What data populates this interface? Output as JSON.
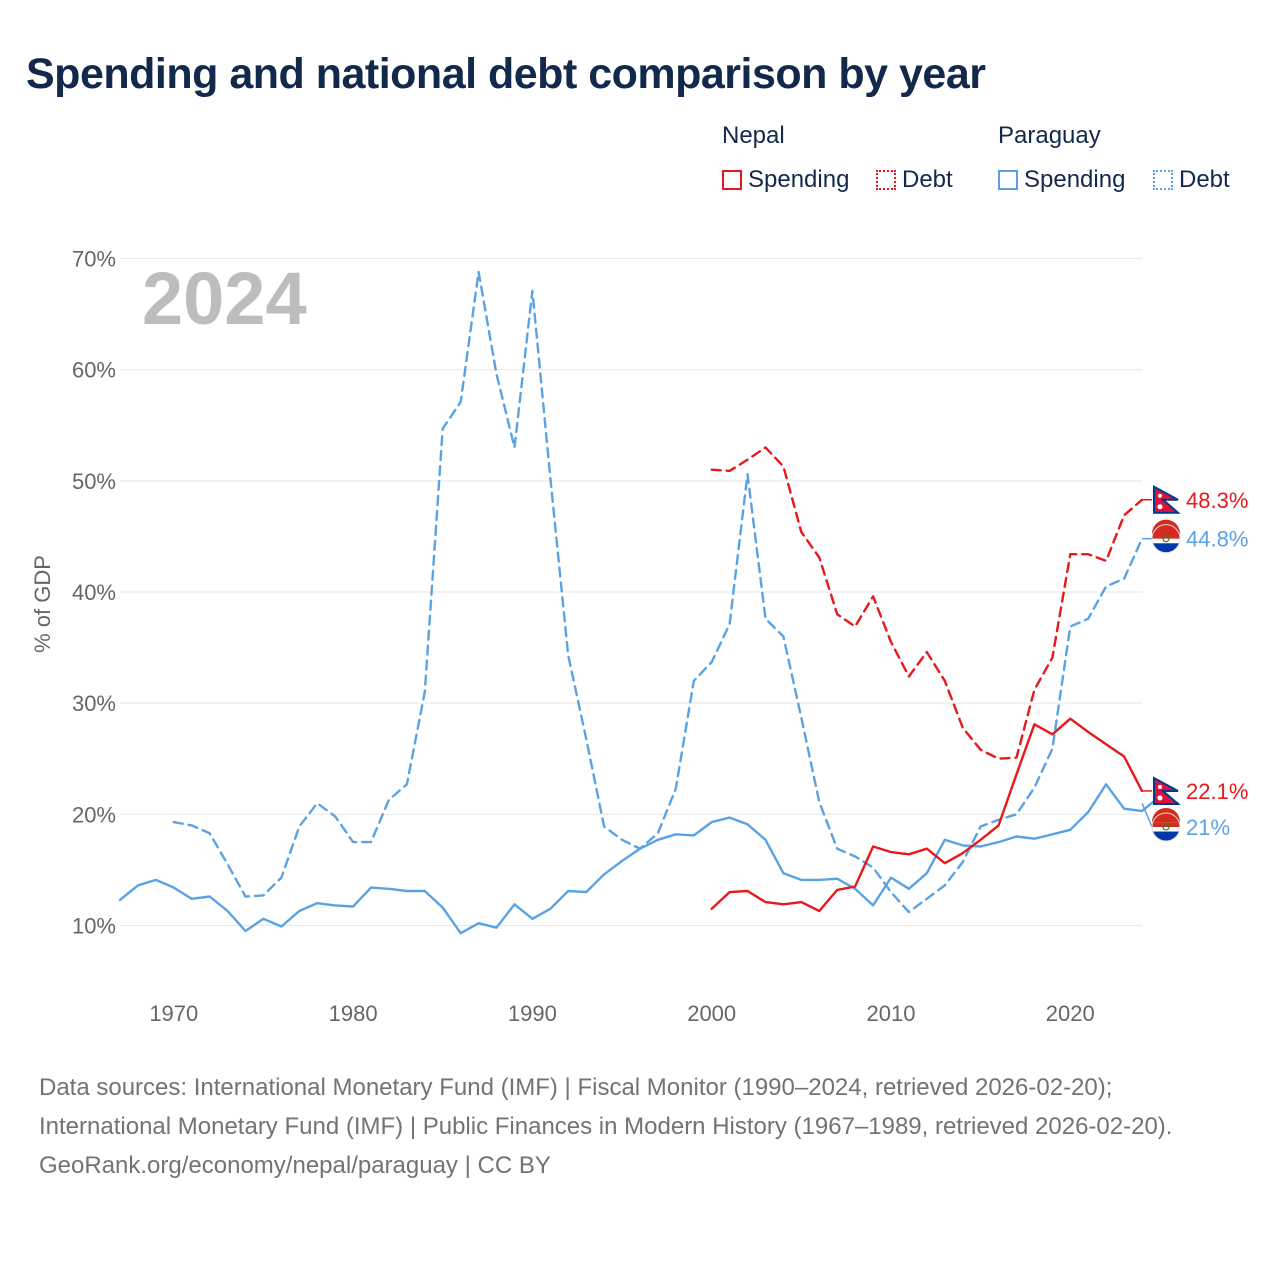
{
  "header": {
    "title": "Spending and national debt comparison by year"
  },
  "legend": {
    "groups": [
      {
        "country": "Nepal",
        "spending_label": "Spending",
        "debt_label": "Debt",
        "color": "#e8191c"
      },
      {
        "country": "Paraguay",
        "spending_label": "Spending",
        "debt_label": "Debt",
        "color": "#5aa3e2"
      }
    ]
  },
  "footer": {
    "sources": "Data sources: International Monetary Fund (IMF) | Fiscal Monitor (1990–2024, retrieved 2026-02-20); International Monetary Fund (IMF) | Public Finances in Modern History (1967–1989, retrieved 2026-02-20).",
    "credit": "GeoRank.org/economy/nepal/paraguay | CC BY"
  },
  "chart_data": {
    "type": "line",
    "year_label": "2024",
    "ylabel": "% of GDP",
    "xlim": [
      1967,
      2024
    ],
    "ylim": [
      5,
      75
    ],
    "x_ticks": [
      1970,
      1980,
      1990,
      2000,
      2010,
      2020
    ],
    "y_ticks": [
      10,
      20,
      30,
      40,
      50,
      60,
      70
    ],
    "y_tick_labels": [
      "10%",
      "20%",
      "30%",
      "40%",
      "50%",
      "60%",
      "70%"
    ],
    "grid": true,
    "series": [
      {
        "name": "Paraguay Debt",
        "country": "Paraguay",
        "kind": "debt",
        "color": "#5aa3e2",
        "dash": true,
        "end_label": "44.8%",
        "start_year": 1970,
        "values": [
          19.3,
          19.0,
          18.3,
          15.5,
          12.6,
          12.7,
          14.3,
          18.9,
          21.0,
          19.8,
          17.5,
          17.5,
          21.3,
          22.7,
          31.0,
          54.7,
          57.1,
          68.8,
          59.6,
          53.0,
          67.1,
          50.3,
          34.3,
          26.8,
          18.9,
          17.7,
          16.9,
          18.3,
          22.3,
          32.0,
          33.7,
          37.1,
          50.6,
          37.6,
          36.0,
          28.7,
          21.1,
          16.9,
          16.2,
          15.2,
          13.0,
          11.2,
          12.4,
          13.6,
          15.7,
          18.9,
          19.5,
          20.0,
          22.4,
          25.9,
          36.9,
          37.6,
          40.5,
          41.2,
          44.8
        ]
      },
      {
        "name": "Paraguay Spending",
        "country": "Paraguay",
        "kind": "spending",
        "color": "#5aa3e2",
        "dash": false,
        "end_label": "21%",
        "start_year": 1967,
        "values": [
          12.3,
          13.6,
          14.1,
          13.4,
          12.4,
          12.6,
          11.3,
          9.5,
          10.6,
          9.9,
          11.3,
          12.0,
          11.8,
          11.7,
          13.4,
          13.3,
          13.1,
          13.1,
          11.6,
          9.3,
          10.2,
          9.8,
          11.9,
          10.6,
          11.5,
          13.1,
          13.0,
          14.6,
          15.8,
          16.9,
          17.7,
          18.2,
          18.1,
          19.3,
          19.7,
          19.1,
          17.7,
          14.7,
          14.1,
          14.1,
          14.2,
          13.3,
          11.8,
          14.3,
          13.3,
          14.7,
          17.7,
          17.2,
          17.1,
          17.5,
          18.0,
          17.8,
          18.2,
          18.6,
          20.2,
          22.7,
          20.5,
          20.3,
          21.6,
          21.0
        ]
      },
      {
        "name": "Nepal Debt",
        "country": "Nepal",
        "kind": "debt",
        "color": "#e8191c",
        "dash": true,
        "end_label": "48.3%",
        "start_year": 2000,
        "values": [
          51.0,
          50.9,
          51.9,
          53.0,
          51.3,
          45.4,
          43.1,
          38.0,
          36.9,
          39.6,
          35.5,
          32.4,
          34.6,
          32.0,
          27.8,
          25.8,
          25.0,
          25.1,
          31.2,
          34.1,
          43.4,
          43.4,
          42.8,
          46.9,
          48.3
        ]
      },
      {
        "name": "Nepal Spending",
        "country": "Nepal",
        "kind": "spending",
        "color": "#e8191c",
        "dash": false,
        "end_label": "22.1%",
        "start_year": 2000,
        "values": [
          11.5,
          13.0,
          13.1,
          12.1,
          11.9,
          12.1,
          11.3,
          13.2,
          13.5,
          17.1,
          16.6,
          16.4,
          16.9,
          15.6,
          16.5,
          17.7,
          19.0,
          23.6,
          28.1,
          27.2,
          28.6,
          27.4,
          26.3,
          25.2,
          22.1
        ]
      }
    ]
  }
}
